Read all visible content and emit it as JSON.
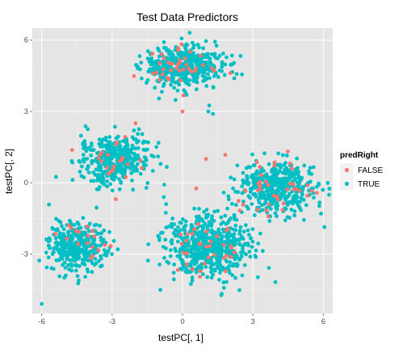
{
  "chart_data": {
    "type": "scatter",
    "title": "Test Data Predictors",
    "xlabel": "testPC[, 1]",
    "ylabel": "testPC[, 2]",
    "xlim": [
      -6.4,
      6.4
    ],
    "ylim": [
      -5.5,
      6.5
    ],
    "x_ticks": [
      -6,
      -3,
      0,
      3,
      6
    ],
    "y_ticks": [
      -3,
      0,
      3,
      6
    ],
    "x_tick_labels": [
      "-6",
      "-3",
      "0",
      "3",
      "6"
    ],
    "y_tick_labels": [
      "-3",
      "0",
      "3",
      "6"
    ],
    "grid": true,
    "background_color": "#e5e5e5",
    "grid_color": "#ffffff",
    "legend": {
      "title": "predRight",
      "placement": "right",
      "entries": [
        {
          "label": "FALSE",
          "color": "#f8766d"
        },
        {
          "label": "TRUE",
          "color": "#00bfc4"
        }
      ]
    },
    "clusters": [
      {
        "center": [
          0.0,
          4.9
        ],
        "spread": [
          0.85,
          0.45
        ],
        "count": 480,
        "false_share": 0.08
      },
      {
        "center": [
          -2.9,
          1.0
        ],
        "spread": [
          0.75,
          0.5
        ],
        "count": 420,
        "false_share": 0.05
      },
      {
        "center": [
          -4.5,
          -2.7
        ],
        "spread": [
          0.6,
          0.5
        ],
        "count": 360,
        "false_share": 0.04
      },
      {
        "center": [
          1.1,
          -2.7
        ],
        "spread": [
          0.9,
          0.65
        ],
        "count": 620,
        "false_share": 0.04
      },
      {
        "center": [
          4.0,
          -0.2
        ],
        "spread": [
          0.8,
          0.55
        ],
        "count": 460,
        "false_share": 0.07
      }
    ],
    "scattered_points": [
      {
        "x": 0.0,
        "y": 3.0,
        "predRight": "FALSE"
      },
      {
        "x": 1.0,
        "y": 1.0,
        "predRight": "FALSE"
      },
      {
        "x": -2.0,
        "y": 2.5,
        "predRight": "FALSE"
      },
      {
        "x": -6.0,
        "y": -5.1,
        "predRight": "TRUE"
      },
      {
        "x": 1.3,
        "y": 2.9,
        "predRight": "TRUE"
      },
      {
        "x": 1.1,
        "y": 3.0,
        "predRight": "TRUE"
      },
      {
        "x": 5.9,
        "y": -1.3,
        "predRight": "TRUE"
      },
      {
        "x": -0.8,
        "y": -0.6,
        "predRight": "TRUE"
      },
      {
        "x": -0.7,
        "y": -0.9,
        "predRight": "TRUE"
      }
    ]
  }
}
